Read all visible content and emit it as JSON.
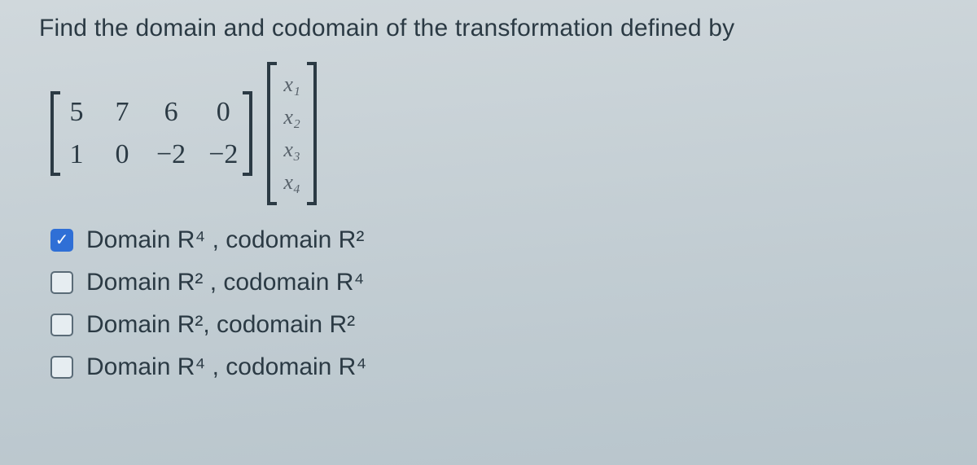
{
  "question": "Find the domain and codomain of the transformation defined by",
  "matrix": {
    "rows": [
      [
        "5",
        "7",
        "6",
        "0"
      ],
      [
        "1",
        "0",
        "−2",
        "−2"
      ]
    ],
    "bracket_color": "#2b3a44",
    "font_size": 34
  },
  "vector": {
    "entries": [
      "x₁",
      "x₂",
      "x₃",
      "x₄"
    ],
    "bracket_color": "#2b3a44",
    "font_size": 26
  },
  "options": [
    {
      "label_html": "Domain R⁴  , codomain R²",
      "checked": true
    },
    {
      "label_html": "Domain R²  , codomain R⁴",
      "checked": false
    },
    {
      "label_html": "Domain R², codomain  R²",
      "checked": false
    },
    {
      "label_html": "Domain R⁴  , codomain R⁴",
      "checked": false
    }
  ],
  "style": {
    "background_color": "#cdd5da",
    "text_color": "#2b3a44",
    "checkbox_checked_bg": "#2f6fd6",
    "checkbox_border": "#5a6b77",
    "question_fontsize": 30,
    "option_fontsize": 30
  }
}
